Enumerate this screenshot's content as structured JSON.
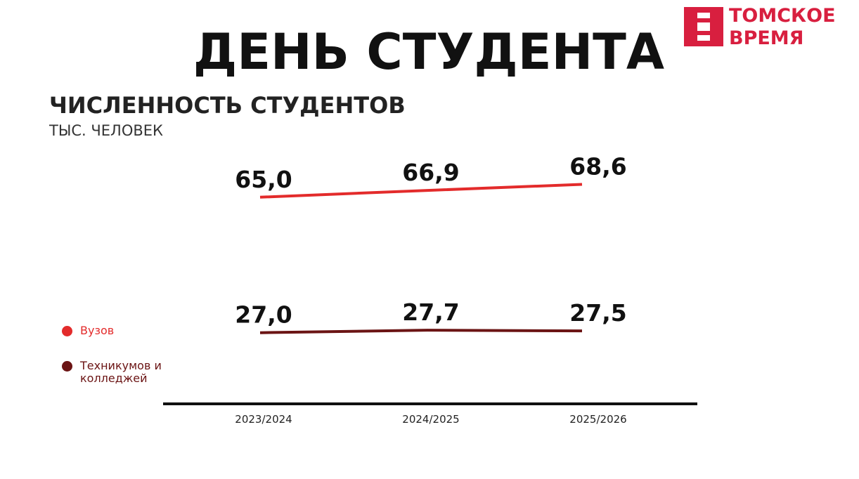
{
  "header": {
    "title": "ДЕНЬ СТУДЕНТА",
    "logo": [
      "ТОМСКОЕ",
      "ВРЕМЯ"
    ]
  },
  "chart_data": {
    "type": "line",
    "title": "ЧИСЛЕННОСТЬ СТУДЕНТОВ",
    "subtitle": "ТЫС. ЧЕЛОВЕК",
    "categories": [
      "2023/2024",
      "2024/2025",
      "2025/2026"
    ],
    "series": [
      {
        "name": "Вузов",
        "color": "#e32b2b",
        "values": [
          65.0,
          66.9,
          68.6
        ],
        "value_labels": [
          "65,0",
          "66,9",
          "68,6"
        ]
      },
      {
        "name": "Техникумов и колледжей",
        "color": "#6b1414",
        "values": [
          27.0,
          27.7,
          27.5
        ],
        "value_labels": [
          "27,0",
          "27,7",
          "27,5"
        ]
      }
    ],
    "ylim": [
      10,
      75
    ]
  }
}
